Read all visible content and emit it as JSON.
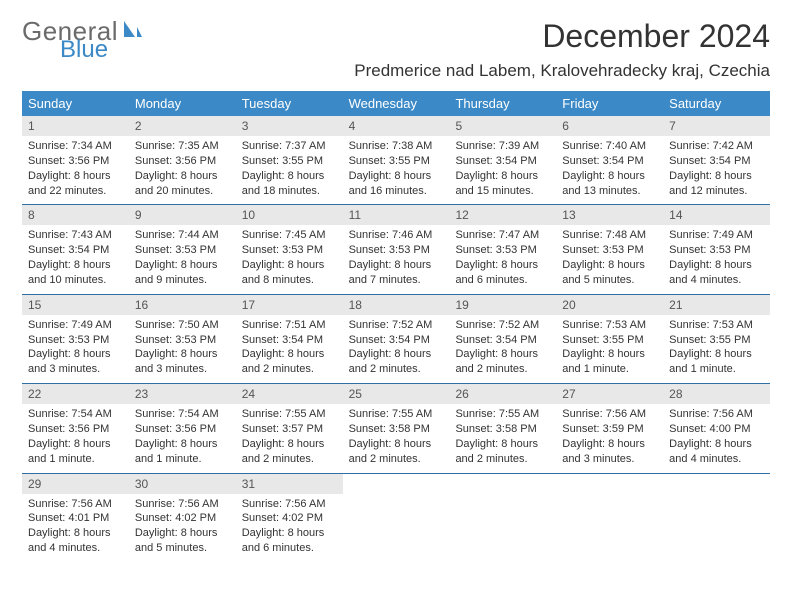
{
  "logo": {
    "general": "General",
    "blue": "Blue",
    "icon_color": "#3b89c7"
  },
  "header": {
    "month_title": "December 2024",
    "location": "Predmerice nad Labem, Kralovehradecky kraj, Czechia"
  },
  "colors": {
    "header_bg": "#3b89c7",
    "header_text": "#ffffff",
    "daynum_bg": "#e8e8e8",
    "daynum_text": "#555555",
    "divider": "#2f6fa3",
    "body_text": "#333333"
  },
  "day_names": [
    "Sunday",
    "Monday",
    "Tuesday",
    "Wednesday",
    "Thursday",
    "Friday",
    "Saturday"
  ],
  "weeks": [
    [
      {
        "n": "1",
        "sr": "Sunrise: 7:34 AM",
        "ss": "Sunset: 3:56 PM",
        "d1": "Daylight: 8 hours",
        "d2": "and 22 minutes."
      },
      {
        "n": "2",
        "sr": "Sunrise: 7:35 AM",
        "ss": "Sunset: 3:56 PM",
        "d1": "Daylight: 8 hours",
        "d2": "and 20 minutes."
      },
      {
        "n": "3",
        "sr": "Sunrise: 7:37 AM",
        "ss": "Sunset: 3:55 PM",
        "d1": "Daylight: 8 hours",
        "d2": "and 18 minutes."
      },
      {
        "n": "4",
        "sr": "Sunrise: 7:38 AM",
        "ss": "Sunset: 3:55 PM",
        "d1": "Daylight: 8 hours",
        "d2": "and 16 minutes."
      },
      {
        "n": "5",
        "sr": "Sunrise: 7:39 AM",
        "ss": "Sunset: 3:54 PM",
        "d1": "Daylight: 8 hours",
        "d2": "and 15 minutes."
      },
      {
        "n": "6",
        "sr": "Sunrise: 7:40 AM",
        "ss": "Sunset: 3:54 PM",
        "d1": "Daylight: 8 hours",
        "d2": "and 13 minutes."
      },
      {
        "n": "7",
        "sr": "Sunrise: 7:42 AM",
        "ss": "Sunset: 3:54 PM",
        "d1": "Daylight: 8 hours",
        "d2": "and 12 minutes."
      }
    ],
    [
      {
        "n": "8",
        "sr": "Sunrise: 7:43 AM",
        "ss": "Sunset: 3:54 PM",
        "d1": "Daylight: 8 hours",
        "d2": "and 10 minutes."
      },
      {
        "n": "9",
        "sr": "Sunrise: 7:44 AM",
        "ss": "Sunset: 3:53 PM",
        "d1": "Daylight: 8 hours",
        "d2": "and 9 minutes."
      },
      {
        "n": "10",
        "sr": "Sunrise: 7:45 AM",
        "ss": "Sunset: 3:53 PM",
        "d1": "Daylight: 8 hours",
        "d2": "and 8 minutes."
      },
      {
        "n": "11",
        "sr": "Sunrise: 7:46 AM",
        "ss": "Sunset: 3:53 PM",
        "d1": "Daylight: 8 hours",
        "d2": "and 7 minutes."
      },
      {
        "n": "12",
        "sr": "Sunrise: 7:47 AM",
        "ss": "Sunset: 3:53 PM",
        "d1": "Daylight: 8 hours",
        "d2": "and 6 minutes."
      },
      {
        "n": "13",
        "sr": "Sunrise: 7:48 AM",
        "ss": "Sunset: 3:53 PM",
        "d1": "Daylight: 8 hours",
        "d2": "and 5 minutes."
      },
      {
        "n": "14",
        "sr": "Sunrise: 7:49 AM",
        "ss": "Sunset: 3:53 PM",
        "d1": "Daylight: 8 hours",
        "d2": "and 4 minutes."
      }
    ],
    [
      {
        "n": "15",
        "sr": "Sunrise: 7:49 AM",
        "ss": "Sunset: 3:53 PM",
        "d1": "Daylight: 8 hours",
        "d2": "and 3 minutes."
      },
      {
        "n": "16",
        "sr": "Sunrise: 7:50 AM",
        "ss": "Sunset: 3:53 PM",
        "d1": "Daylight: 8 hours",
        "d2": "and 3 minutes."
      },
      {
        "n": "17",
        "sr": "Sunrise: 7:51 AM",
        "ss": "Sunset: 3:54 PM",
        "d1": "Daylight: 8 hours",
        "d2": "and 2 minutes."
      },
      {
        "n": "18",
        "sr": "Sunrise: 7:52 AM",
        "ss": "Sunset: 3:54 PM",
        "d1": "Daylight: 8 hours",
        "d2": "and 2 minutes."
      },
      {
        "n": "19",
        "sr": "Sunrise: 7:52 AM",
        "ss": "Sunset: 3:54 PM",
        "d1": "Daylight: 8 hours",
        "d2": "and 2 minutes."
      },
      {
        "n": "20",
        "sr": "Sunrise: 7:53 AM",
        "ss": "Sunset: 3:55 PM",
        "d1": "Daylight: 8 hours",
        "d2": "and 1 minute."
      },
      {
        "n": "21",
        "sr": "Sunrise: 7:53 AM",
        "ss": "Sunset: 3:55 PM",
        "d1": "Daylight: 8 hours",
        "d2": "and 1 minute."
      }
    ],
    [
      {
        "n": "22",
        "sr": "Sunrise: 7:54 AM",
        "ss": "Sunset: 3:56 PM",
        "d1": "Daylight: 8 hours",
        "d2": "and 1 minute."
      },
      {
        "n": "23",
        "sr": "Sunrise: 7:54 AM",
        "ss": "Sunset: 3:56 PM",
        "d1": "Daylight: 8 hours",
        "d2": "and 1 minute."
      },
      {
        "n": "24",
        "sr": "Sunrise: 7:55 AM",
        "ss": "Sunset: 3:57 PM",
        "d1": "Daylight: 8 hours",
        "d2": "and 2 minutes."
      },
      {
        "n": "25",
        "sr": "Sunrise: 7:55 AM",
        "ss": "Sunset: 3:58 PM",
        "d1": "Daylight: 8 hours",
        "d2": "and 2 minutes."
      },
      {
        "n": "26",
        "sr": "Sunrise: 7:55 AM",
        "ss": "Sunset: 3:58 PM",
        "d1": "Daylight: 8 hours",
        "d2": "and 2 minutes."
      },
      {
        "n": "27",
        "sr": "Sunrise: 7:56 AM",
        "ss": "Sunset: 3:59 PM",
        "d1": "Daylight: 8 hours",
        "d2": "and 3 minutes."
      },
      {
        "n": "28",
        "sr": "Sunrise: 7:56 AM",
        "ss": "Sunset: 4:00 PM",
        "d1": "Daylight: 8 hours",
        "d2": "and 4 minutes."
      }
    ],
    [
      {
        "n": "29",
        "sr": "Sunrise: 7:56 AM",
        "ss": "Sunset: 4:01 PM",
        "d1": "Daylight: 8 hours",
        "d2": "and 4 minutes."
      },
      {
        "n": "30",
        "sr": "Sunrise: 7:56 AM",
        "ss": "Sunset: 4:02 PM",
        "d1": "Daylight: 8 hours",
        "d2": "and 5 minutes."
      },
      {
        "n": "31",
        "sr": "Sunrise: 7:56 AM",
        "ss": "Sunset: 4:02 PM",
        "d1": "Daylight: 8 hours",
        "d2": "and 6 minutes."
      },
      null,
      null,
      null,
      null
    ]
  ]
}
